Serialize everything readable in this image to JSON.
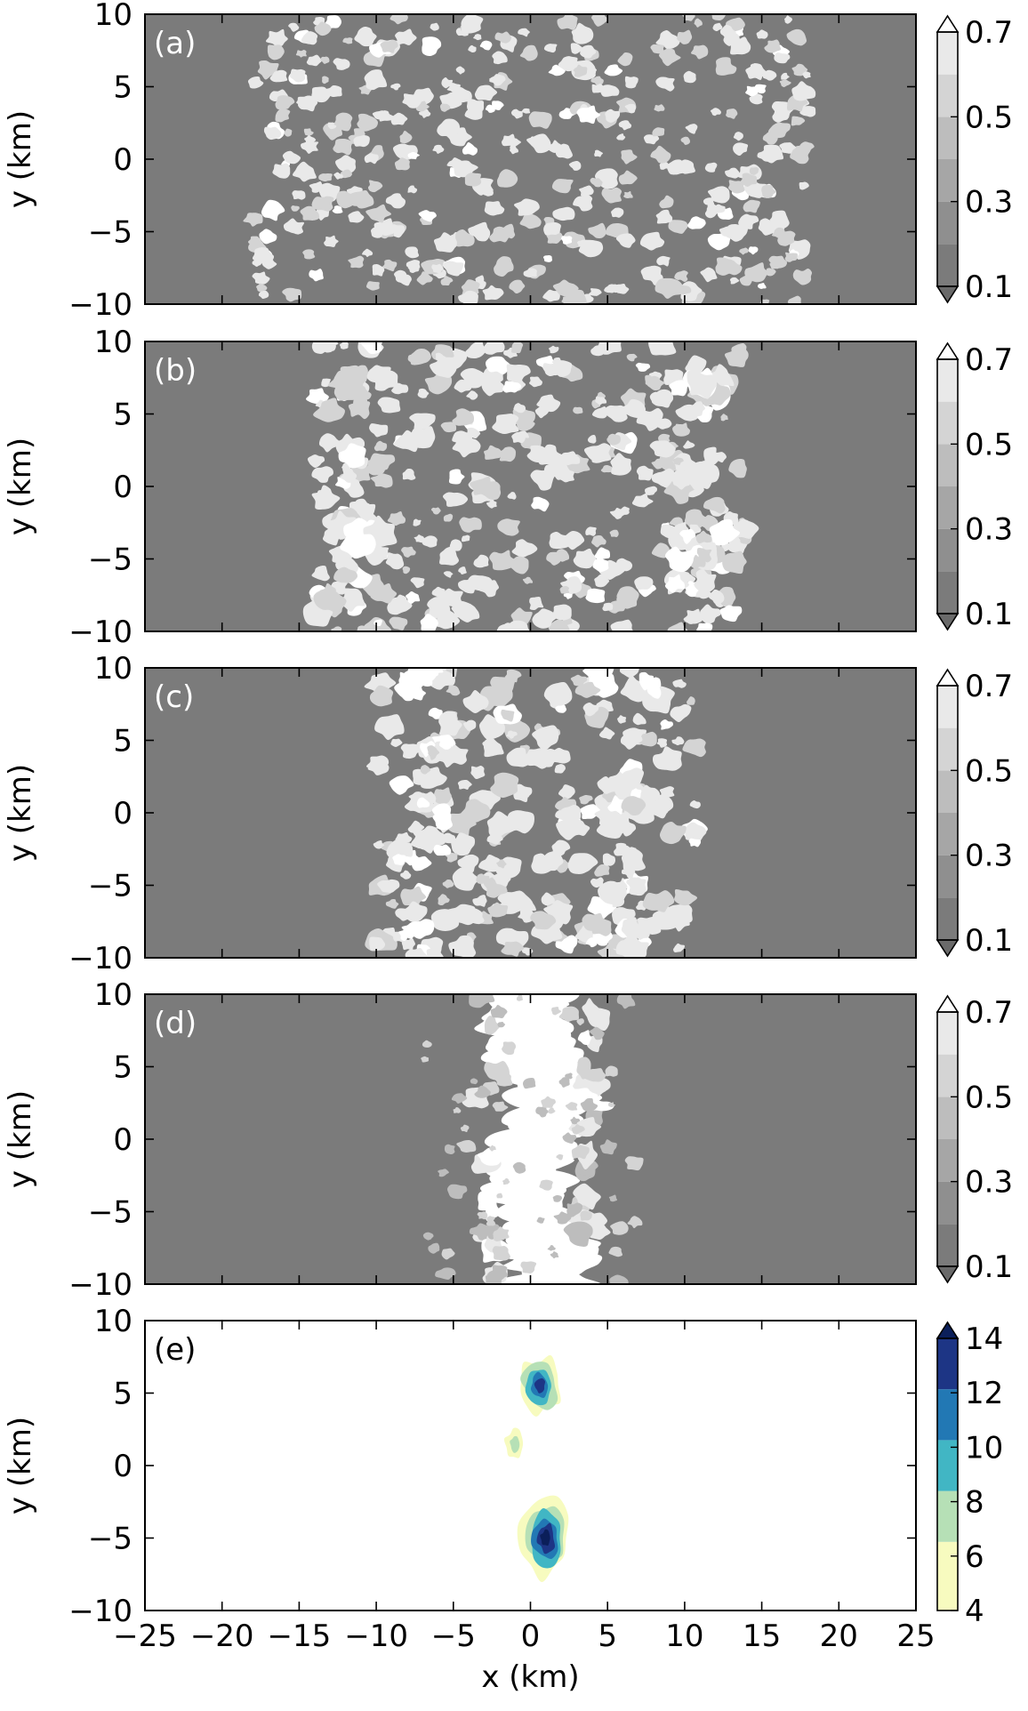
{
  "chart_data": [
    {
      "type": "heatmap",
      "panel_label": "(a)",
      "field": "cloud-fraction-like scalar",
      "ylabel": "y (km)",
      "xlabel": "",
      "xlim": [
        -25,
        25
      ],
      "ylim": [
        -10,
        10
      ],
      "xticks": [
        -25,
        -20,
        -15,
        -10,
        -5,
        0,
        5,
        10,
        15,
        20,
        25
      ],
      "yticks": [
        -10,
        -5,
        0,
        5,
        10
      ],
      "ytick_labels": [
        "−10",
        "−5",
        "0",
        "5",
        "10"
      ],
      "colorbar": {
        "ticks": [
          0.1,
          0.3,
          0.5,
          0.7
        ],
        "tick_labels": [
          "0.1",
          "0.3",
          "0.5",
          "0.7"
        ],
        "extend": "both",
        "levels": [
          0.1,
          0.2,
          0.3,
          0.4,
          0.5,
          0.6,
          0.7
        ],
        "colors": [
          "#7b7b7b",
          "#8f8f8f",
          "#a6a6a6",
          "#bdbdbd",
          "#d4d4d4",
          "#e9e9e9",
          "#ffffff"
        ],
        "under_color": "#6a6a6a",
        "over_color": "#ffffff"
      },
      "background_color": "#7b7b7b",
      "features": [
        {
          "kind": "scattered cells",
          "x_range": [
            -18,
            18
          ],
          "y_range": [
            -10,
            10
          ],
          "count": 380,
          "radius_km": [
            0.25,
            0.75
          ],
          "value": 0.72
        }
      ]
    },
    {
      "type": "heatmap",
      "panel_label": "(b)",
      "ylabel": "y (km)",
      "xlabel": "",
      "xlim": [
        -25,
        25
      ],
      "ylim": [
        -10,
        10
      ],
      "xticks": [
        -25,
        -20,
        -15,
        -10,
        -5,
        0,
        5,
        10,
        15,
        20,
        25
      ],
      "yticks": [
        -10,
        -5,
        0,
        5,
        10
      ],
      "ytick_labels": [
        "−10",
        "−5",
        "0",
        "5",
        "10"
      ],
      "colorbar": {
        "ticks": [
          0.1,
          0.3,
          0.5,
          0.7
        ],
        "tick_labels": [
          "0.1",
          "0.3",
          "0.5",
          "0.7"
        ],
        "extend": "both",
        "levels": [
          0.1,
          0.2,
          0.3,
          0.4,
          0.5,
          0.6,
          0.7
        ],
        "colors": [
          "#7b7b7b",
          "#8f8f8f",
          "#a6a6a6",
          "#bdbdbd",
          "#d4d4d4",
          "#e9e9e9",
          "#ffffff"
        ],
        "under_color": "#6a6a6a",
        "over_color": "#ffffff"
      },
      "background_color": "#7b7b7b",
      "features": [
        {
          "kind": "scattered cells",
          "x_range": [
            -14,
            14
          ],
          "y_range": [
            -10,
            10
          ],
          "count": 300,
          "radius_km": [
            0.25,
            0.85
          ],
          "value": 0.72
        },
        {
          "kind": "cloud clusters",
          "centers": [
            [
              -12,
              6.5
            ],
            [
              -11,
              1.5
            ],
            [
              -12,
              -2
            ],
            [
              -12.5,
              -7.5
            ],
            [
              -10,
              -4
            ],
            [
              12,
              6.5
            ],
            [
              11,
              1
            ],
            [
              11.5,
              -3.5
            ],
            [
              10,
              -6
            ]
          ],
          "radius_km": 1.2,
          "value": 0.6
        }
      ]
    },
    {
      "type": "heatmap",
      "panel_label": "(c)",
      "ylabel": "y (km)",
      "xlabel": "",
      "xlim": [
        -25,
        25
      ],
      "ylim": [
        -10,
        10
      ],
      "xticks": [
        -25,
        -20,
        -15,
        -10,
        -5,
        0,
        5,
        10,
        15,
        20,
        25
      ],
      "yticks": [
        -10,
        -5,
        0,
        5,
        10
      ],
      "ytick_labels": [
        "−10",
        "−5",
        "0",
        "5",
        "10"
      ],
      "colorbar": {
        "ticks": [
          0.1,
          0.3,
          0.5,
          0.7
        ],
        "tick_labels": [
          "0.1",
          "0.3",
          "0.5",
          "0.7"
        ],
        "extend": "both",
        "levels": [
          0.1,
          0.2,
          0.3,
          0.4,
          0.5,
          0.6,
          0.7
        ],
        "colors": [
          "#7b7b7b",
          "#8f8f8f",
          "#a6a6a6",
          "#bdbdbd",
          "#d4d4d4",
          "#e9e9e9",
          "#ffffff"
        ],
        "under_color": "#6a6a6a",
        "over_color": "#ffffff"
      },
      "background_color": "#7b7b7b",
      "features": [
        {
          "kind": "scattered cells",
          "x_range": [
            -10,
            11
          ],
          "y_range": [
            -10,
            10
          ],
          "count": 230,
          "radius_km": [
            0.3,
            0.95
          ],
          "value": 0.72
        },
        {
          "kind": "cloud clusters",
          "centers": [
            [
              -7,
              9
            ],
            [
              -6,
              5
            ],
            [
              -6.5,
              0
            ],
            [
              -7.5,
              -3
            ],
            [
              -7,
              -9
            ],
            [
              7,
              9
            ],
            [
              6.5,
              1.5
            ],
            [
              6,
              -4
            ],
            [
              6.5,
              -9
            ]
          ],
          "radius_km": 1.0,
          "value": 0.65
        }
      ]
    },
    {
      "type": "heatmap",
      "panel_label": "(d)",
      "ylabel": "y (km)",
      "xlabel": "",
      "xlim": [
        -25,
        25
      ],
      "ylim": [
        -10,
        10
      ],
      "xticks": [
        -25,
        -20,
        -15,
        -10,
        -5,
        0,
        5,
        10,
        15,
        20,
        25
      ],
      "yticks": [
        -10,
        -5,
        0,
        5,
        10
      ],
      "ytick_labels": [
        "−10",
        "−5",
        "0",
        "5",
        "10"
      ],
      "colorbar": {
        "ticks": [
          0.1,
          0.3,
          0.5,
          0.7
        ],
        "tick_labels": [
          "0.1",
          "0.3",
          "0.5",
          "0.7"
        ],
        "extend": "both",
        "levels": [
          0.1,
          0.2,
          0.3,
          0.4,
          0.5,
          0.6,
          0.7
        ],
        "colors": [
          "#7b7b7b",
          "#8f8f8f",
          "#a6a6a6",
          "#bdbdbd",
          "#d4d4d4",
          "#e9e9e9",
          "#ffffff"
        ],
        "under_color": "#6a6a6a",
        "over_color": "#ffffff"
      },
      "background_color": "#7b7b7b",
      "features": [
        {
          "kind": "central band",
          "x_center": 0.5,
          "half_width_km": 2.5,
          "y_range": [
            -10,
            10
          ],
          "value": 0.75
        },
        {
          "kind": "scattered cells",
          "x_range": [
            -7,
            7
          ],
          "y_range": [
            -10,
            10
          ],
          "count": 70,
          "radius_km": [
            0.2,
            0.6
          ],
          "value": 0.6
        }
      ]
    },
    {
      "type": "heatmap",
      "panel_label": "(e)",
      "ylabel": "y (km)",
      "xlabel": "x (km)",
      "xlim": [
        -25,
        25
      ],
      "ylim": [
        -10,
        10
      ],
      "xticks": [
        -25,
        -20,
        -15,
        -10,
        -5,
        0,
        5,
        10,
        15,
        20,
        25
      ],
      "xtick_labels": [
        "−25",
        "−20",
        "−15",
        "−10",
        "−5",
        "0",
        "5",
        "10",
        "15",
        "20",
        "25"
      ],
      "yticks": [
        -10,
        -5,
        0,
        5,
        10
      ],
      "ytick_labels": [
        "−10",
        "−5",
        "0",
        "5",
        "10"
      ],
      "colorbar": {
        "ticks": [
          4,
          6,
          8,
          10,
          12,
          14
        ],
        "tick_labels": [
          "4",
          "6",
          "8",
          "10",
          "12",
          "14"
        ],
        "extend": "max",
        "levels": [
          4,
          6,
          8,
          10,
          12,
          14
        ],
        "colors": [
          "#f7fbbf",
          "#b6e0b6",
          "#41b6c4",
          "#2278b4",
          "#1d3585"
        ],
        "over_color": "#0b1f5a"
      },
      "background_color": "#ffffff",
      "features": [
        {
          "kind": "contour blob",
          "center": [
            0.6,
            5.5
          ],
          "values_from_edge": [
            5,
            7,
            9,
            11,
            13
          ]
        },
        {
          "kind": "contour blob",
          "center": [
            1.0,
            -5.0
          ],
          "values_from_edge": [
            5,
            7,
            9,
            11,
            13,
            14.5
          ]
        },
        {
          "kind": "contour blob",
          "center": [
            -1.0,
            1.5
          ],
          "values_from_edge": [
            5,
            7
          ]
        }
      ]
    }
  ]
}
